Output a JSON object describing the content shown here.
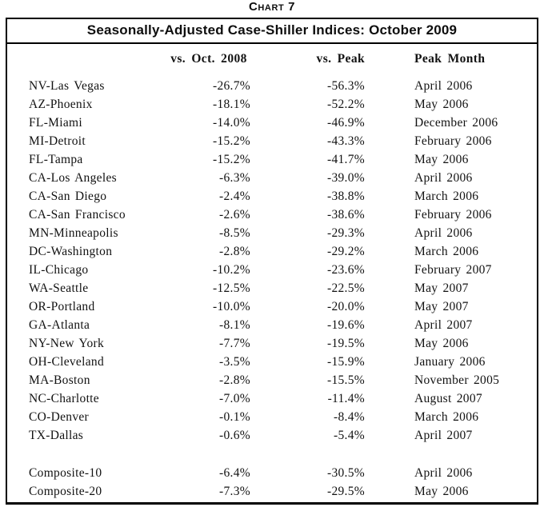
{
  "chart_data": {
    "type": "table",
    "label": "Chart 7",
    "title": "Seasonally-Adjusted Case-Shiller Indices: October 2009",
    "columns": [
      "",
      "vs. Oct. 2008",
      "vs. Peak",
      "Peak Month"
    ],
    "rows": [
      [
        "NV-Las Vegas",
        "-26.7%",
        "-56.3%",
        "April 2006"
      ],
      [
        "AZ-Phoenix",
        "-18.1%",
        "-52.2%",
        "May 2006"
      ],
      [
        "FL-Miami",
        "-14.0%",
        "-46.9%",
        "December 2006"
      ],
      [
        "MI-Detroit",
        "-15.2%",
        "-43.3%",
        "February 2006"
      ],
      [
        "FL-Tampa",
        "-15.2%",
        "-41.7%",
        "May 2006"
      ],
      [
        "CA-Los Angeles",
        "-6.3%",
        "-39.0%",
        "April 2006"
      ],
      [
        "CA-San Diego",
        "-2.4%",
        "-38.8%",
        "March 2006"
      ],
      [
        "CA-San Francisco",
        "-2.6%",
        "-38.6%",
        "February 2006"
      ],
      [
        "MN-Minneapolis",
        "-8.5%",
        "-29.3%",
        "April 2006"
      ],
      [
        "DC-Washington",
        "-2.8%",
        "-29.2%",
        "March 2006"
      ],
      [
        "IL-Chicago",
        "-10.2%",
        "-23.6%",
        "February 2007"
      ],
      [
        "WA-Seattle",
        "-12.5%",
        "-22.5%",
        "May 2007"
      ],
      [
        "OR-Portland",
        "-10.0%",
        "-20.0%",
        "May 2007"
      ],
      [
        "GA-Atlanta",
        "-8.1%",
        "-19.6%",
        "April 2007"
      ],
      [
        "NY-New York",
        "-7.7%",
        "-19.5%",
        "May 2006"
      ],
      [
        "OH-Cleveland",
        "-3.5%",
        "-15.9%",
        "January 2006"
      ],
      [
        "MA-Boston",
        "-2.8%",
        "-15.5%",
        "November 2005"
      ],
      [
        "NC-Charlotte",
        "-7.0%",
        "-11.4%",
        "August 2007"
      ],
      [
        "CO-Denver",
        "-0.1%",
        "-8.4%",
        "March 2006"
      ],
      [
        "TX-Dallas",
        "-0.6%",
        "-5.4%",
        "April 2007"
      ]
    ],
    "composite_rows": [
      [
        "Composite-10",
        "-6.4%",
        "-30.5%",
        "April 2006"
      ],
      [
        "Composite-20",
        "-7.3%",
        "-29.5%",
        "May 2006"
      ]
    ],
    "colors": {
      "text": "#121212",
      "border": "#000000",
      "background": "#ffffff"
    }
  }
}
